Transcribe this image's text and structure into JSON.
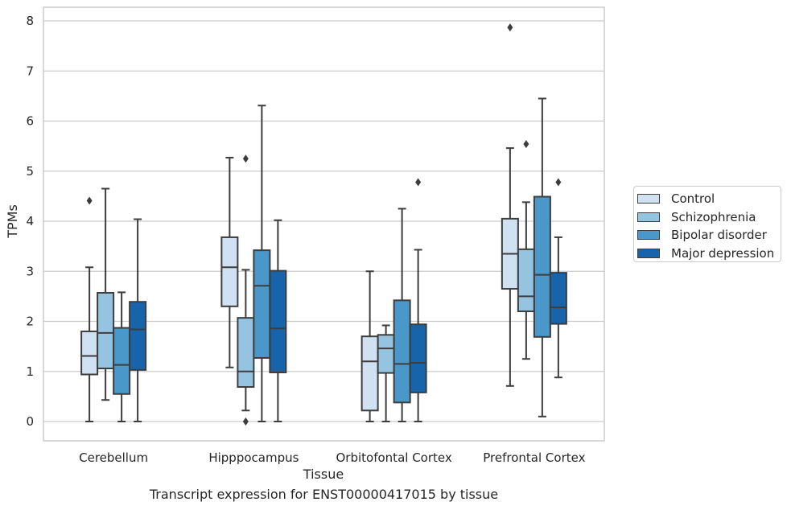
{
  "chart_data": {
    "type": "box",
    "title": "",
    "caption": "Transcript expression for ENST00000417015 by tissue",
    "xlabel": "Tissue",
    "ylabel": "TPMs",
    "ylim": [
      -0.37,
      8.28
    ],
    "yticks": [
      0,
      1,
      2,
      3,
      4,
      5,
      6,
      7,
      8
    ],
    "grid": true,
    "legend_position": "right",
    "categories": [
      "Cerebellum",
      "Hipppocampus",
      "Orbitofontal Cortex",
      "Prefrontal Cortex"
    ],
    "series": [
      {
        "name": "Control",
        "color": "#d0e1f2",
        "boxes": [
          {
            "whisker_low": 0.0,
            "q1": 0.94,
            "median": 1.31,
            "q3": 1.8,
            "whisker_high": 3.08,
            "outliers": [
              4.41
            ]
          },
          {
            "whisker_low": 1.08,
            "q1": 2.3,
            "median": 3.08,
            "q3": 3.68,
            "whisker_high": 5.27,
            "outliers": []
          },
          {
            "whisker_low": 0.0,
            "q1": 0.22,
            "median": 1.2,
            "q3": 1.7,
            "whisker_high": 3.0,
            "outliers": []
          },
          {
            "whisker_low": 0.71,
            "q1": 2.65,
            "median": 3.35,
            "q3": 4.05,
            "whisker_high": 5.46,
            "outliers": [
              7.87
            ]
          }
        ]
      },
      {
        "name": "Schizophrenia",
        "color": "#94c4df",
        "boxes": [
          {
            "whisker_low": 0.43,
            "q1": 1.06,
            "median": 1.77,
            "q3": 2.57,
            "whisker_high": 4.65,
            "outliers": []
          },
          {
            "whisker_low": 0.22,
            "q1": 0.69,
            "median": 1.0,
            "q3": 2.07,
            "whisker_high": 3.03,
            "outliers": [
              5.25,
              0.0
            ]
          },
          {
            "whisker_low": 0.0,
            "q1": 0.97,
            "median": 1.46,
            "q3": 1.73,
            "whisker_high": 1.92,
            "outliers": []
          },
          {
            "whisker_low": 1.25,
            "q1": 2.2,
            "median": 2.5,
            "q3": 3.44,
            "whisker_high": 4.38,
            "outliers": [
              5.54
            ]
          }
        ]
      },
      {
        "name": "Bipolar disorder",
        "color": "#4a98c9",
        "boxes": [
          {
            "whisker_low": 0.0,
            "q1": 0.55,
            "median": 1.13,
            "q3": 1.87,
            "whisker_high": 2.58,
            "outliers": []
          },
          {
            "whisker_low": 0.0,
            "q1": 1.27,
            "median": 2.71,
            "q3": 3.42,
            "whisker_high": 6.31,
            "outliers": []
          },
          {
            "whisker_low": 0.0,
            "q1": 0.38,
            "median": 1.15,
            "q3": 2.42,
            "whisker_high": 4.25,
            "outliers": []
          },
          {
            "whisker_low": 0.1,
            "q1": 1.69,
            "median": 2.93,
            "q3": 4.49,
            "whisker_high": 6.45,
            "outliers": []
          }
        ]
      },
      {
        "name": "Major depression",
        "color": "#1764ab",
        "boxes": [
          {
            "whisker_low": 0.0,
            "q1": 1.03,
            "median": 1.84,
            "q3": 2.39,
            "whisker_high": 4.04,
            "outliers": []
          },
          {
            "whisker_low": 0.0,
            "q1": 0.98,
            "median": 1.86,
            "q3": 3.01,
            "whisker_high": 4.02,
            "outliers": []
          },
          {
            "whisker_low": 0.0,
            "q1": 0.58,
            "median": 1.17,
            "q3": 1.94,
            "whisker_high": 3.43,
            "outliers": [
              4.78
            ]
          },
          {
            "whisker_low": 0.88,
            "q1": 1.95,
            "median": 2.28,
            "q3": 2.97,
            "whisker_high": 3.68,
            "outliers": [
              4.78
            ]
          }
        ]
      }
    ]
  }
}
